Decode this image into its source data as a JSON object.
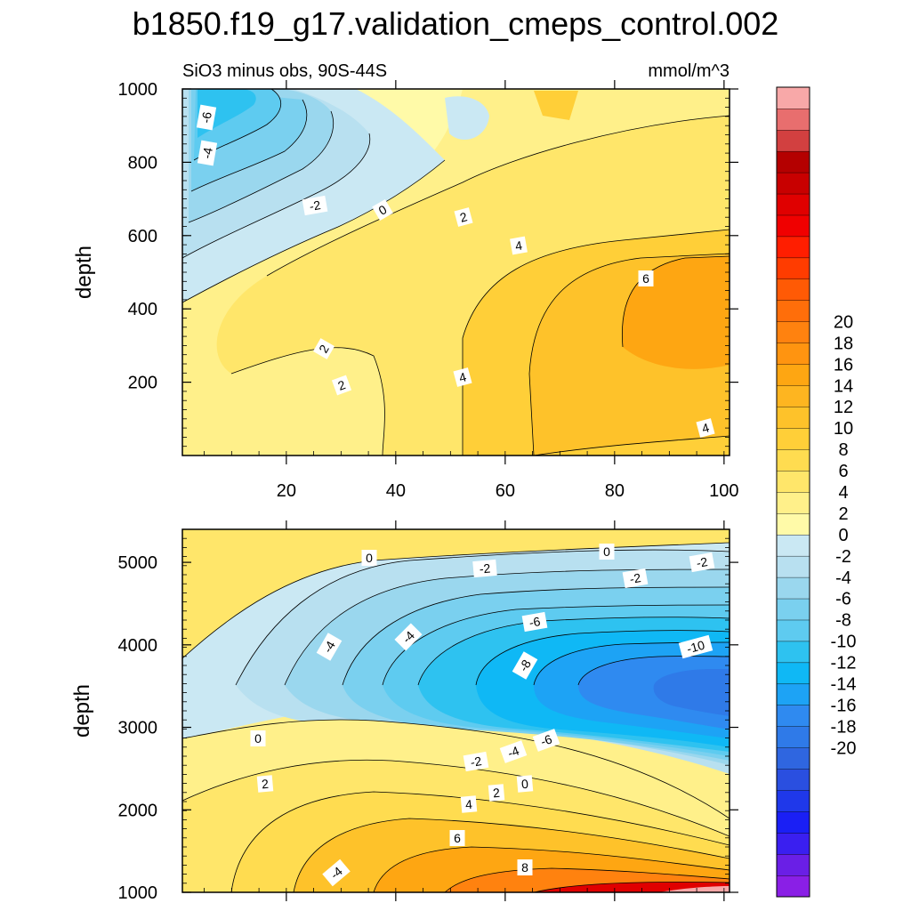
{
  "title": "b1850.f19_g17.validation_cmeps_control.002",
  "colorbar": {
    "tick_labels": [
      "20",
      "18",
      "16",
      "14",
      "12",
      "10",
      "8",
      "6",
      "4",
      "2",
      "0",
      "-2",
      "-4",
      "-6",
      "-8",
      "-10",
      "-12",
      "-14",
      "-16",
      "-18",
      "-20"
    ],
    "colors": [
      "#8a1fe6",
      "#6a1fe6",
      "#3a1ff0",
      "#1a1ff5",
      "#1f38ea",
      "#2a4fe0",
      "#2f66e0",
      "#2f7ae8",
      "#2f8af0",
      "#1da3f5",
      "#0fb8f5",
      "#2ec2f0",
      "#5ecbf0",
      "#7ad0ef",
      "#9ad7ee",
      "#b8e0f0",
      "#cae8f3",
      "#fffaa8",
      "#fff08a",
      "#ffe66a",
      "#ffdc50",
      "#ffcf38",
      "#fec22a",
      "#feb520",
      "#fea612",
      "#ff9410",
      "#ff820f",
      "#ff6e0a",
      "#ff5a05",
      "#ff3c00",
      "#ff1e00",
      "#f00000",
      "#e00000",
      "#c80000",
      "#b40000",
      "#d24040",
      "#e86e6e",
      "#f8a8a8"
    ]
  },
  "chart_data": [
    {
      "type": "heatmap",
      "subtitle_left": "SiO3 minus obs, 90S-44S",
      "subtitle_right": "mmol/m^3",
      "xlabel": "",
      "ylabel": "depth",
      "xlim": [
        1,
        101
      ],
      "ylim": [
        1000,
        0
      ],
      "xticks": [
        "20",
        "40",
        "60",
        "80",
        "100"
      ],
      "yticks": [
        "200",
        "400",
        "600",
        "800",
        "1000"
      ],
      "contour_labels": [
        "-6",
        "-4",
        "-2",
        "0",
        "2",
        "4",
        "6",
        "2",
        "2",
        "4",
        "4"
      ]
    },
    {
      "type": "heatmap",
      "subtitle_left": "",
      "subtitle_right": "",
      "xlabel": "",
      "ylabel": "depth",
      "xlim": [
        1,
        101
      ],
      "ylim": [
        5400,
        1000
      ],
      "xticks": [],
      "yticks": [
        "1000",
        "2000",
        "3000",
        "4000",
        "5000"
      ],
      "contour_labels": [
        "0",
        "0",
        "-2",
        "-2",
        "-4",
        "-2",
        "-4",
        "-6",
        "-8",
        "-10",
        "-2",
        "-4",
        "-6",
        "0",
        "2",
        "0",
        "2",
        "4",
        "6",
        "-4",
        "8"
      ]
    }
  ]
}
